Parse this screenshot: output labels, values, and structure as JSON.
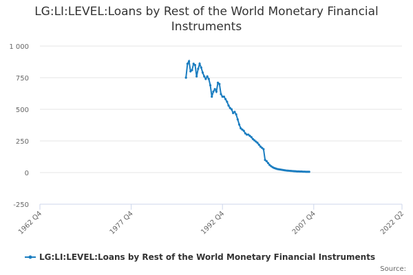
{
  "chart_data": {
    "type": "line",
    "title": "LG:LI:LEVEL:Loans by Rest of the World Monetary Financial Instruments",
    "source": "Source:",
    "x": [
      "1986 Q4",
      "1987 Q1",
      "1987 Q2",
      "1987 Q3",
      "1987 Q4",
      "1988 Q1",
      "1988 Q2",
      "1988 Q3",
      "1988 Q4",
      "1989 Q1",
      "1989 Q2",
      "1989 Q3",
      "1989 Q4",
      "1990 Q1",
      "1990 Q2",
      "1990 Q3",
      "1990 Q4",
      "1991 Q1",
      "1991 Q2",
      "1991 Q3",
      "1991 Q4",
      "1992 Q1",
      "1992 Q2",
      "1992 Q3",
      "1992 Q4",
      "1993 Q1",
      "1993 Q2",
      "1993 Q3",
      "1993 Q4",
      "1994 Q1",
      "1994 Q2",
      "1994 Q3",
      "1994 Q4",
      "1995 Q1",
      "1995 Q2",
      "1995 Q3",
      "1995 Q4",
      "1996 Q1",
      "1996 Q2",
      "1996 Q3",
      "1996 Q4",
      "1997 Q1",
      "1997 Q2",
      "1997 Q3",
      "1997 Q4",
      "1998 Q1",
      "1998 Q2",
      "1998 Q3",
      "1998 Q4",
      "1999 Q1",
      "1999 Q2",
      "1999 Q3",
      "1999 Q4",
      "2000 Q1",
      "2000 Q2",
      "2000 Q3",
      "2000 Q4",
      "2001 Q1",
      "2001 Q2",
      "2001 Q3",
      "2001 Q4",
      "2002 Q1",
      "2002 Q2",
      "2002 Q3",
      "2002 Q4",
      "2003 Q1",
      "2003 Q2",
      "2003 Q3",
      "2003 Q4",
      "2004 Q1",
      "2004 Q2",
      "2004 Q3",
      "2004 Q4",
      "2005 Q1",
      "2005 Q2",
      "2005 Q3",
      "2005 Q4",
      "2006 Q1",
      "2006 Q2",
      "2006 Q3",
      "2006 Q4",
      "2007 Q1"
    ],
    "series": [
      {
        "name": "LG:LI:LEVEL:Loans by Rest of the World Monetary Financial Instruments",
        "color": "#1a7dc0",
        "values": [
          750,
          860,
          880,
          800,
          810,
          860,
          850,
          760,
          820,
          860,
          830,
          790,
          760,
          740,
          760,
          740,
          690,
          600,
          640,
          660,
          640,
          710,
          700,
          620,
          600,
          600,
          580,
          560,
          530,
          510,
          500,
          470,
          480,
          460,
          420,
          380,
          350,
          340,
          330,
          310,
          300,
          300,
          290,
          280,
          265,
          255,
          245,
          235,
          220,
          205,
          195,
          185,
          100,
          90,
          75,
          60,
          50,
          42,
          36,
          32,
          28,
          26,
          24,
          22,
          20,
          18,
          16,
          15,
          14,
          13,
          12,
          11,
          10,
          9,
          9,
          8,
          8,
          7,
          7,
          6,
          6,
          6
        ]
      }
    ],
    "xlim": [
      "1962 Q4",
      "2022 Q2"
    ],
    "xticks": [
      "1962 Q4",
      "1977 Q4",
      "1992 Q4",
      "2007 Q4",
      "2022 Q2"
    ],
    "ylim": [
      -250,
      1000
    ],
    "yticks": [
      -250,
      0,
      250,
      500,
      750,
      {
        "value": 1000,
        "label": "1 000"
      }
    ],
    "grid": true,
    "legend": "bottom"
  }
}
